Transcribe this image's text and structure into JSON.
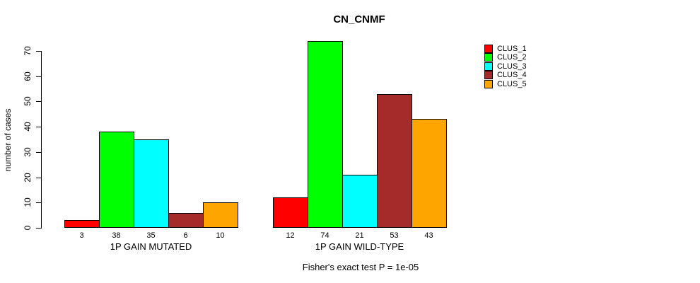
{
  "title": "CN_CNMF",
  "caption": "Fisher's exact test P = 1e-05",
  "chart_data": {
    "type": "bar",
    "title": "CN_CNMF",
    "xlabel": "",
    "ylabel": "number of cases",
    "ylim": [
      0,
      70
    ],
    "yticks": [
      0,
      10,
      20,
      30,
      40,
      50,
      60,
      70
    ],
    "grid": false,
    "legend_position": "right",
    "annotation": "Fisher's exact test P = 1e-05",
    "groups": [
      {
        "label": "1P GAIN MUTATED",
        "values": [
          3,
          38,
          35,
          6,
          10
        ]
      },
      {
        "label": "1P GAIN WILD-TYPE",
        "values": [
          12,
          74,
          21,
          53,
          43
        ]
      }
    ],
    "series": [
      {
        "name": "CLUS_1",
        "color": "#FF0000"
      },
      {
        "name": "CLUS_2",
        "color": "#00FF00"
      },
      {
        "name": "CLUS_3",
        "color": "#00FFFF"
      },
      {
        "name": "CLUS_4",
        "color": "#A52A2A"
      },
      {
        "name": "CLUS_5",
        "color": "#FFA500"
      }
    ]
  },
  "legend": {
    "items": [
      {
        "label": "CLUS_1",
        "color": "#FF0000"
      },
      {
        "label": "CLUS_2",
        "color": "#00FF00"
      },
      {
        "label": "CLUS_3",
        "color": "#00FFFF"
      },
      {
        "label": "CLUS_4",
        "color": "#A52A2A"
      },
      {
        "label": "CLUS_5",
        "color": "#FFA500"
      }
    ]
  }
}
